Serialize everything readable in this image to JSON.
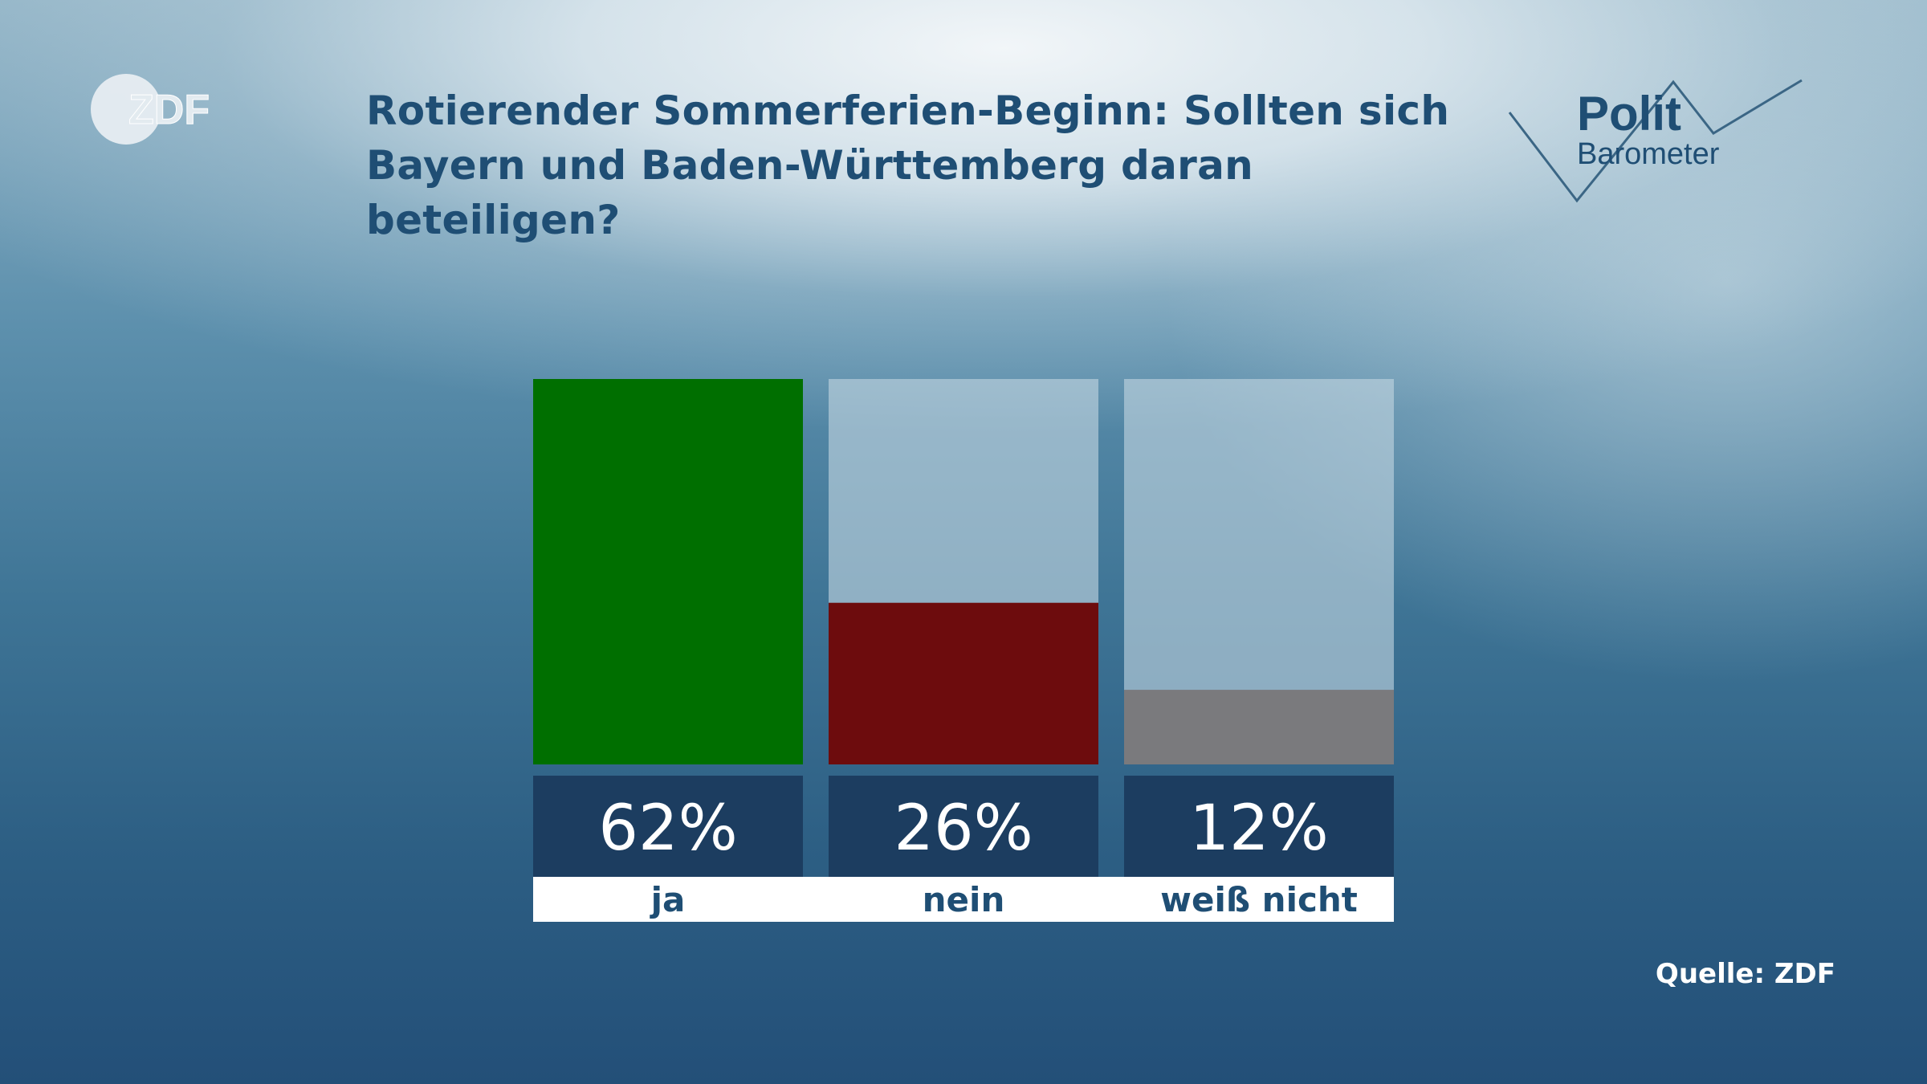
{
  "header": {
    "title_line1": "Rotierender Sommerferien-Beginn: Sollten sich",
    "title_line2": "Bayern und Baden-Württemberg daran beteiligen?"
  },
  "logos": {
    "zdf": "ZDF",
    "polit": "Polit",
    "barometer": "Barometer"
  },
  "source": "Quelle: ZDF",
  "chart_data": {
    "type": "bar",
    "categories": [
      "ja",
      "nein",
      "weiß nicht"
    ],
    "values": [
      62,
      26,
      12
    ],
    "value_labels": [
      "62%",
      "26%",
      "12%"
    ],
    "colors": [
      "#006f00",
      "#6d0c0d",
      "#7a7a7d"
    ],
    "unit": "%",
    "ylim": [
      0,
      62
    ],
    "grid": false,
    "legend": "none",
    "title": "Rotierender Sommerferien-Beginn: Sollten sich Bayern und Baden-Württemberg daran beteiligen?"
  }
}
